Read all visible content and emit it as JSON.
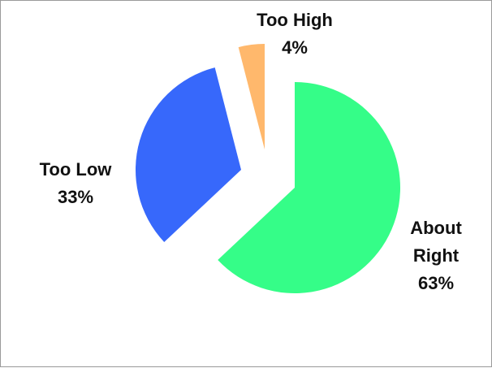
{
  "chart_data": {
    "type": "pie",
    "title": "",
    "exploded": true,
    "slices": [
      {
        "name": "About Right",
        "label_lines": [
          "About",
          "Right"
        ],
        "percent_label": "63%",
        "value": 63,
        "color": "#35FD88"
      },
      {
        "name": "Too Low",
        "label_lines": [
          "Too Low"
        ],
        "percent_label": "33%",
        "value": 33,
        "color": "#3768FB"
      },
      {
        "name": "Too High",
        "label_lines": [
          "Too High"
        ],
        "percent_label": "4%",
        "value": 4,
        "color": "#FFB86C"
      }
    ]
  }
}
